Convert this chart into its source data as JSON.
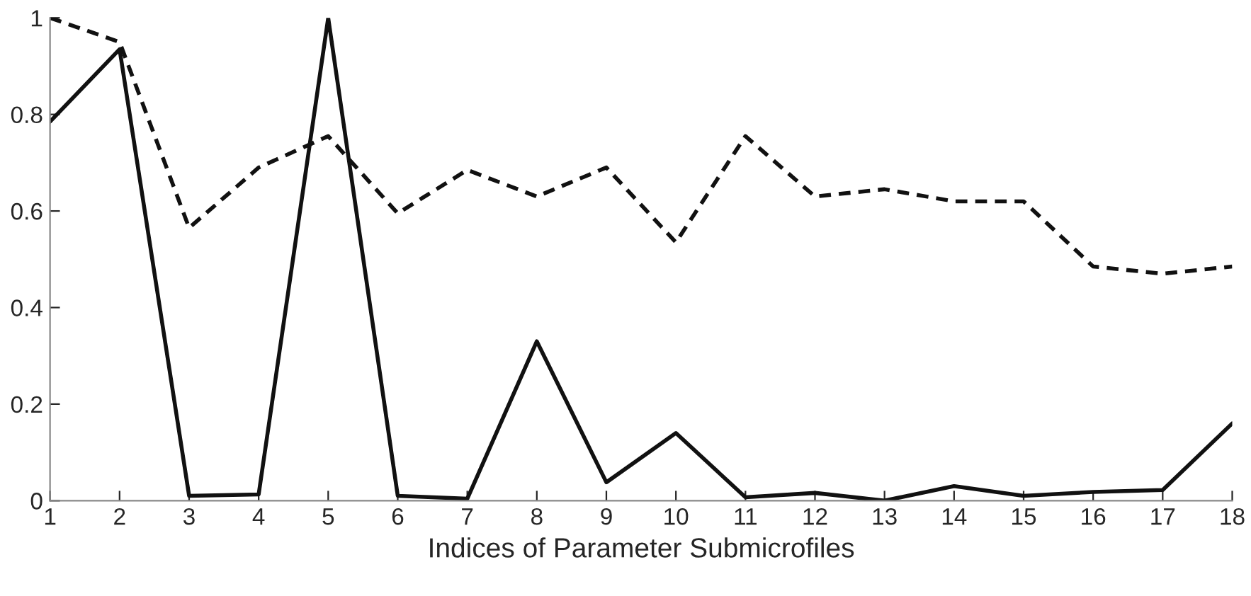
{
  "chart_data": {
    "type": "line",
    "xlabel": "Indices of Parameter Submicrofiles",
    "x": [
      1,
      2,
      3,
      4,
      5,
      6,
      7,
      8,
      9,
      10,
      11,
      12,
      13,
      14,
      15,
      16,
      17,
      18
    ],
    "series": [
      {
        "color": "#111111",
        "line_style": "dashed",
        "values": [
          1,
          0.95,
          0.565,
          0.69,
          0.755,
          0.595,
          0.685,
          0.63,
          0.69,
          0.535,
          0.755,
          0.63,
          0.645,
          0.62,
          0.62,
          0.485,
          0.47,
          0.485
        ]
      },
      {
        "color": "#111111",
        "line_style": "solid",
        "values": [
          0.785,
          0.935,
          0.01,
          0.013,
          1,
          0.01,
          0.004,
          0.33,
          0.038,
          0.14,
          0.007,
          0.016,
          0,
          0.03,
          0.01,
          0.018,
          0.022,
          0.16
        ]
      }
    ],
    "xlim": [
      1,
      18
    ],
    "xticks": [
      1,
      2,
      3,
      4,
      5,
      6,
      7,
      8,
      9,
      10,
      11,
      12,
      13,
      14,
      15,
      16,
      17,
      18
    ],
    "ylim": [
      0,
      1
    ],
    "yticks": [
      0,
      0.2,
      0.4,
      0.6,
      0.8,
      1
    ],
    "grid": false,
    "legend": false,
    "marker": "none"
  }
}
